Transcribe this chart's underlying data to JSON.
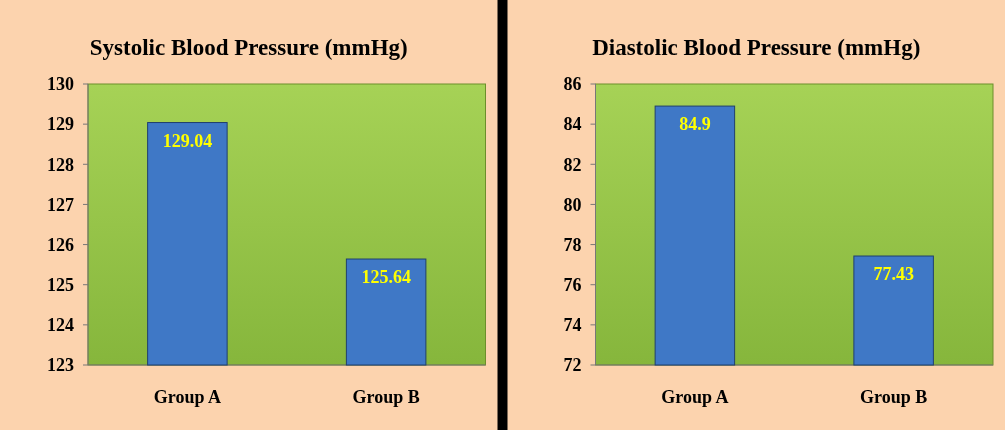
{
  "chart_data": [
    {
      "type": "bar",
      "title": "Systolic Blood Pressure  (mmHg)",
      "categories": [
        "Group A",
        "Group B"
      ],
      "values": [
        129.04,
        125.64
      ],
      "color": "#3f78c6",
      "ylim": [
        123,
        130
      ],
      "yticks": [
        123,
        124,
        125,
        126,
        127,
        128,
        129,
        130
      ],
      "data_labels": true
    },
    {
      "type": "bar",
      "title": "Diastolic Blood Pressure  (mmHg)",
      "categories": [
        "Group A",
        "Group B"
      ],
      "values": [
        84.9,
        77.43
      ],
      "color": "#3f78c6",
      "ylim": [
        72,
        86
      ],
      "yticks": [
        72,
        74,
        76,
        78,
        80,
        82,
        84,
        86
      ],
      "data_labels": true
    }
  ]
}
